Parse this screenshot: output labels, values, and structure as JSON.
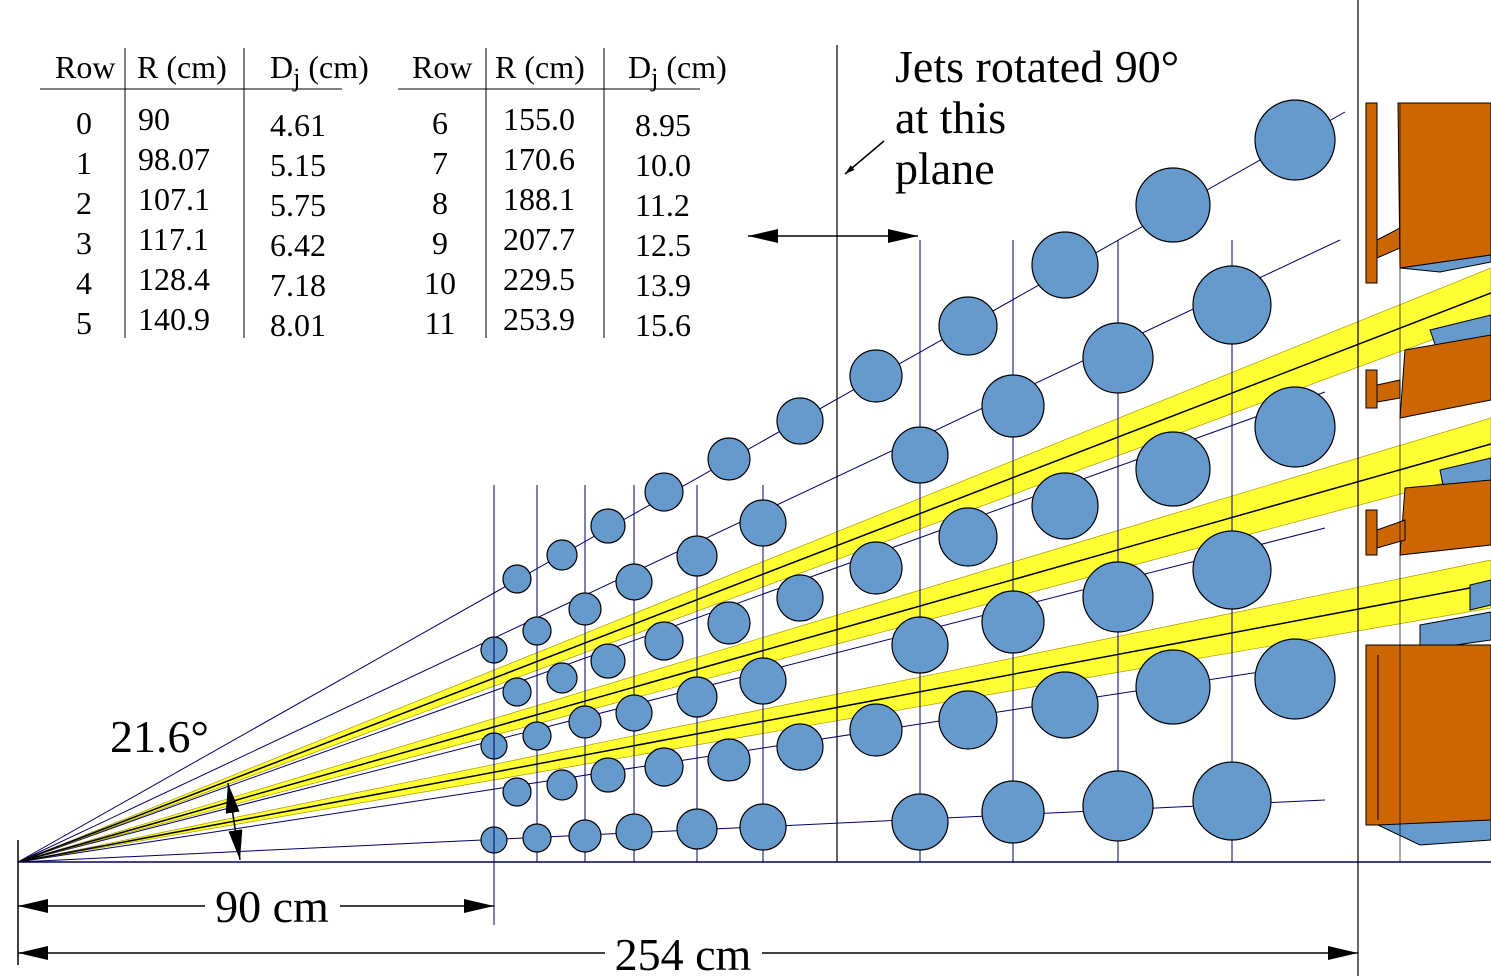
{
  "tables": [
    {
      "headers": [
        "Row",
        "R (cm)",
        {
          "main": "D",
          "sub": "j",
          "rest": " (cm)"
        }
      ],
      "rows": [
        [
          "0",
          "90",
          "4.61"
        ],
        [
          "1",
          "98.07",
          "5.15"
        ],
        [
          "2",
          "107.1",
          "5.75"
        ],
        [
          "3",
          "117.1",
          "6.42"
        ],
        [
          "4",
          "128.4",
          "7.18"
        ],
        [
          "5",
          "140.9",
          "8.01"
        ]
      ]
    },
    {
      "headers": [
        "Row",
        "R (cm)",
        {
          "main": "D",
          "sub": "j",
          "rest": " (cm)"
        }
      ],
      "rows": [
        [
          "6",
          "155.0",
          "8.95"
        ],
        [
          "7",
          "170.6",
          "10.0"
        ],
        [
          "8",
          "188.1",
          "11.2"
        ],
        [
          "9",
          "207.7",
          "12.5"
        ],
        [
          "10",
          "229.5",
          "13.9"
        ],
        [
          "11",
          "253.9",
          "15.6"
        ]
      ]
    }
  ],
  "labels": {
    "plane_note": [
      "Jets rotated 90°",
      "at this",
      "plane"
    ],
    "angle": "21.6°",
    "short_dim": "90 cm",
    "long_dim": "254 cm"
  }
}
